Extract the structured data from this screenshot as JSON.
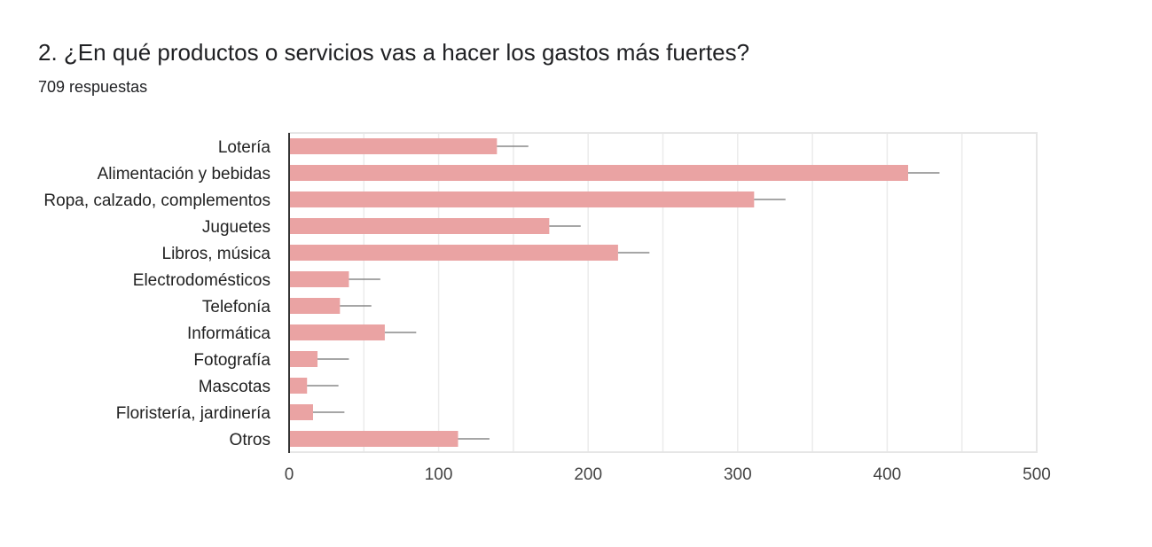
{
  "header": {
    "title": "2. ¿En qué productos o servicios vas a hacer los gastos más fuertes?",
    "responses": "709 respuestas"
  },
  "colors": {
    "bar": "#eaa3a3",
    "error_bar": "#888888",
    "grid": "#ebebeb",
    "axis": "#333333",
    "frame": "#e6e6e6"
  },
  "chart_data": {
    "type": "bar",
    "orientation": "horizontal",
    "title": "",
    "xlabel": "",
    "ylabel": "",
    "categories": [
      "Lotería",
      "Alimentación y bebidas",
      "Ropa, calzado, complementos",
      "Juguetes",
      "Libros, música",
      "Electrodomésticos",
      "Telefonía",
      "Informática",
      "Fotografía",
      "Mascotas",
      "Floristería, jardinería",
      "Otros"
    ],
    "values": [
      139,
      414,
      311,
      174,
      220,
      40,
      34,
      64,
      19,
      12,
      16,
      113
    ],
    "error_bars": [
      12,
      12,
      12,
      12,
      12,
      12,
      12,
      12,
      12,
      12,
      12,
      12
    ],
    "xlim": [
      0,
      500
    ],
    "xticks": [
      0,
      100,
      200,
      300,
      400,
      500
    ],
    "xtick_labels": [
      "0",
      "100",
      "200",
      "300",
      "400",
      "500"
    ],
    "grid": true,
    "legend": "none"
  }
}
